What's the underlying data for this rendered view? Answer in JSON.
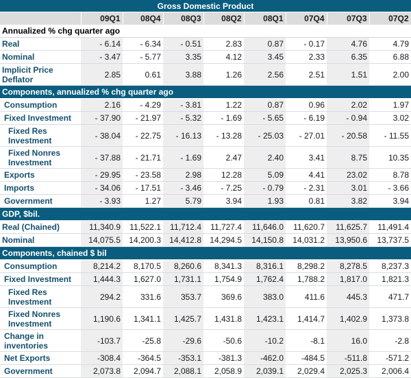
{
  "title": "Gross Domestic Product",
  "columns": [
    "09Q1",
    "08Q4",
    "08Q3",
    "08Q2",
    "08Q1",
    "07Q4",
    "07Q3",
    "07Q2"
  ],
  "sections": [
    {
      "heading": "Annualized % chg quarter ago",
      "rows": [
        {
          "label": "Real",
          "values": [
            "- 6.14",
            "- 6.34",
            "- 0.51",
            "2.83",
            "0.87",
            "- 0.17",
            "4.76",
            "4.79"
          ]
        },
        {
          "label": "Nominal",
          "values": [
            "- 3.47",
            "- 5.77",
            "3.35",
            "4.12",
            "3.45",
            "2.33",
            "6.35",
            "6.88"
          ]
        },
        {
          "label": "Implicit Price Deflator",
          "values": [
            "2.85",
            "0.61",
            "3.88",
            "1.26",
            "2.56",
            "2.51",
            "1.51",
            "2.00"
          ]
        }
      ]
    },
    {
      "heading": "Components, annualized % chg quarter ago",
      "rows": [
        {
          "label": "Consumption",
          "values": [
            "2.16",
            "- 4.29",
            "- 3.81",
            "1.22",
            "0.87",
            "0.96",
            "2.02",
            "1.97"
          ]
        },
        {
          "label": "Fixed Investment",
          "values": [
            "- 37.90",
            "- 21.97",
            "- 5.32",
            "- 1.69",
            "- 5.65",
            "- 6.19",
            "- 0.94",
            "3.02"
          ]
        },
        {
          "label": "Fixed Res Investment",
          "values": [
            "- 38.04",
            "- 22.75",
            "- 16.13",
            "- 13.28",
            "- 25.03",
            "- 27.01",
            "- 20.58",
            "- 11.55"
          ]
        },
        {
          "label": "Fixed Nonres Investment",
          "values": [
            "- 37.88",
            "- 21.71",
            "- 1.69",
            "2.47",
            "2.40",
            "3.41",
            "8.75",
            "10.35"
          ]
        },
        {
          "label": "Exports",
          "values": [
            "- 29.95",
            "- 23.58",
            "2.98",
            "12.28",
            "5.09",
            "4.41",
            "23.02",
            "8.78"
          ]
        },
        {
          "label": "Imports",
          "values": [
            "- 34.06",
            "- 17.51",
            "- 3.46",
            "- 7.25",
            "- 0.79",
            "- 2.31",
            "3.01",
            "- 3.66"
          ]
        },
        {
          "label": "Government",
          "values": [
            "- 3.93",
            "1.27",
            "5.79",
            "3.94",
            "1.93",
            "0.81",
            "3.82",
            "3.94"
          ]
        }
      ]
    },
    {
      "heading": "GDP, $bil.",
      "rows": [
        {
          "label": "Real (Chained)",
          "values": [
            "11,340.9",
            "11,522.1",
            "11,712.4",
            "11,727.4",
            "11,646.0",
            "11,620.7",
            "11,625.7",
            "11,491.4"
          ]
        },
        {
          "label": "Nominal",
          "values": [
            "14,075.5",
            "14,200.3",
            "14,412.8",
            "14,294.5",
            "14,150.8",
            "14,031.2",
            "13,950.6",
            "13,737.5"
          ]
        }
      ]
    },
    {
      "heading": "Components, chained $ bil",
      "rows": [
        {
          "label": "Consumption",
          "values": [
            "8,214.2",
            "8,170.5",
            "8,260.6",
            "8,341.3",
            "8,316.1",
            "8,298.2",
            "8,278.5",
            "8,237.3"
          ]
        },
        {
          "label": "Fixed Investment",
          "values": [
            "1,444.3",
            "1,627.0",
            "1,731.1",
            "1,754.9",
            "1,762.4",
            "1,788.2",
            "1,817.0",
            "1,821.3"
          ]
        },
        {
          "label": "Fixed Res Investment",
          "values": [
            "294.2",
            "331.6",
            "353.7",
            "369.6",
            "383.0",
            "411.6",
            "445.3",
            "471.7"
          ]
        },
        {
          "label": "Fixed Nonres Investment",
          "values": [
            "1,190.6",
            "1,341.1",
            "1,425.7",
            "1,431.8",
            "1,423.1",
            "1,414.7",
            "1,402.9",
            "1,373.8"
          ]
        },
        {
          "label": "Change in inventories",
          "values": [
            "-103.7",
            "-25.8",
            "-29.6",
            "-50.6",
            "-10.2",
            "-8.1",
            "16.0",
            "-2.8"
          ]
        },
        {
          "label": "Net Exports",
          "values": [
            "-308.4",
            "-364.5",
            "-353.1",
            "-381.3",
            "-462.0",
            "-484.5",
            "-511.8",
            "-571.2"
          ]
        },
        {
          "label": "Government",
          "values": [
            "2,073.8",
            "2,094.7",
            "2,088.1",
            "2,058.9",
            "2,039.1",
            "2,029.4",
            "2,025.3",
            "2,006.4"
          ]
        }
      ]
    }
  ]
}
